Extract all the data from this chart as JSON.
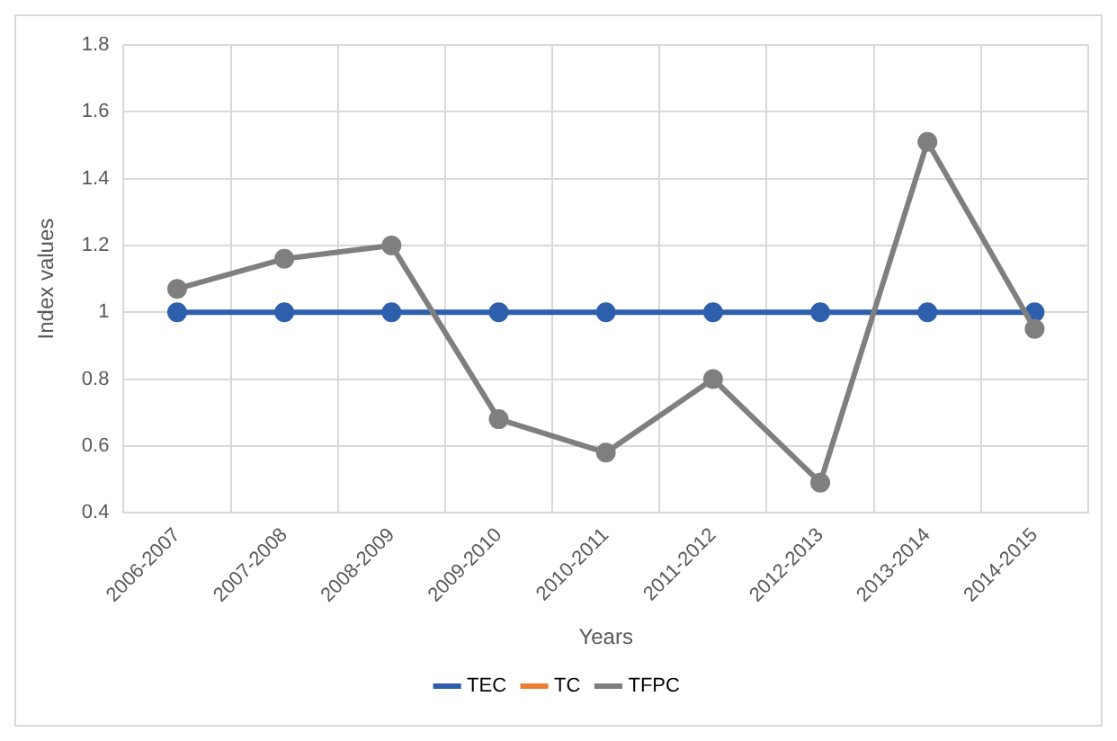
{
  "chart_data": {
    "type": "line",
    "xlabel": "Years",
    "ylabel": "Index values",
    "categories": [
      "2006-2007",
      "2007-2008",
      "2008-2009",
      "2009-2010",
      "2010-2011",
      "2011-2012",
      "2012-2013",
      "2013-2014",
      "2014-2015"
    ],
    "series": [
      {
        "name": "TEC",
        "color": "#2e5fad",
        "values": [
          1,
          1,
          1,
          1,
          1,
          1,
          1,
          1,
          1
        ]
      },
      {
        "name": "TC",
        "color": "#ed7d31",
        "values": [
          null,
          null,
          null,
          null,
          null,
          null,
          null,
          null,
          null
        ]
      },
      {
        "name": "TFPC",
        "color": "#7f7f7f",
        "values": [
          1.07,
          1.16,
          1.2,
          0.68,
          0.58,
          0.8,
          0.49,
          1.51,
          0.95
        ]
      }
    ],
    "ylim": [
      0.4,
      1.8
    ],
    "yticks": [
      0.4,
      0.6,
      0.8,
      1,
      1.2,
      1.4,
      1.6,
      1.8
    ],
    "grid": true,
    "legend": "bottom",
    "marker": "circle",
    "line_style": "solid"
  }
}
